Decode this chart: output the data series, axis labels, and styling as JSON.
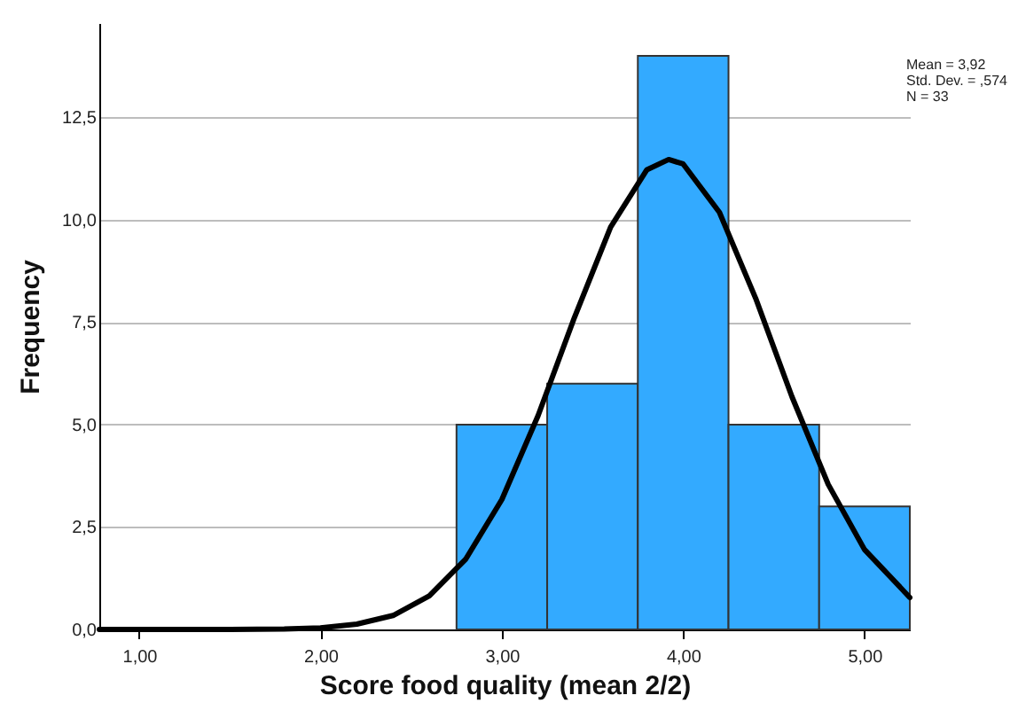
{
  "chart_data": {
    "type": "histogram",
    "xlabel": "Score food quality (mean 2/2)",
    "ylabel": "Frequency",
    "bins": [
      2.75,
      3.25,
      3.75,
      4.25,
      4.75,
      5.25
    ],
    "values": [
      5,
      6,
      14,
      5,
      3
    ],
    "color": "#33aaff",
    "series": [
      {
        "type": "line",
        "color": "#000000",
        "x": [
          0.78,
          1.0,
          1.5,
          1.8,
          2.0,
          2.2,
          2.4,
          2.6,
          2.8,
          3.0,
          3.2,
          3.4,
          3.6,
          3.8,
          3.92,
          4.0,
          4.2,
          4.4,
          4.6,
          4.8,
          5.0,
          5.25
        ],
        "values": [
          0,
          0,
          0,
          0.01,
          0.04,
          0.13,
          0.34,
          0.82,
          1.71,
          3.17,
          5.22,
          7.61,
          9.82,
          11.22,
          11.47,
          11.36,
          10.18,
          8.08,
          5.68,
          3.54,
          1.95,
          0.78
        ]
      }
    ],
    "xlim": [
      0.78,
      5.25
    ],
    "xticks": [
      {
        "value": 1,
        "label": "1,00"
      },
      {
        "value": 2,
        "label": "2,00"
      },
      {
        "value": 3,
        "label": "3,00"
      },
      {
        "value": 4,
        "label": "4,00"
      },
      {
        "value": 5,
        "label": "5,00"
      }
    ],
    "ylim": [
      0,
      14.8
    ],
    "yticks": [
      {
        "value": 0,
        "label": "0,0"
      },
      {
        "value": 2.5,
        "label": "2,5"
      },
      {
        "value": 5,
        "label": "5,0"
      },
      {
        "value": 7.5,
        "label": "7,5"
      },
      {
        "value": 10,
        "label": "10,0"
      },
      {
        "value": 12.5,
        "label": "12,5"
      }
    ],
    "grid": "y",
    "annotations": [
      "Mean = 3,92",
      "Std. Dev. = ,574",
      "N = 33"
    ]
  }
}
